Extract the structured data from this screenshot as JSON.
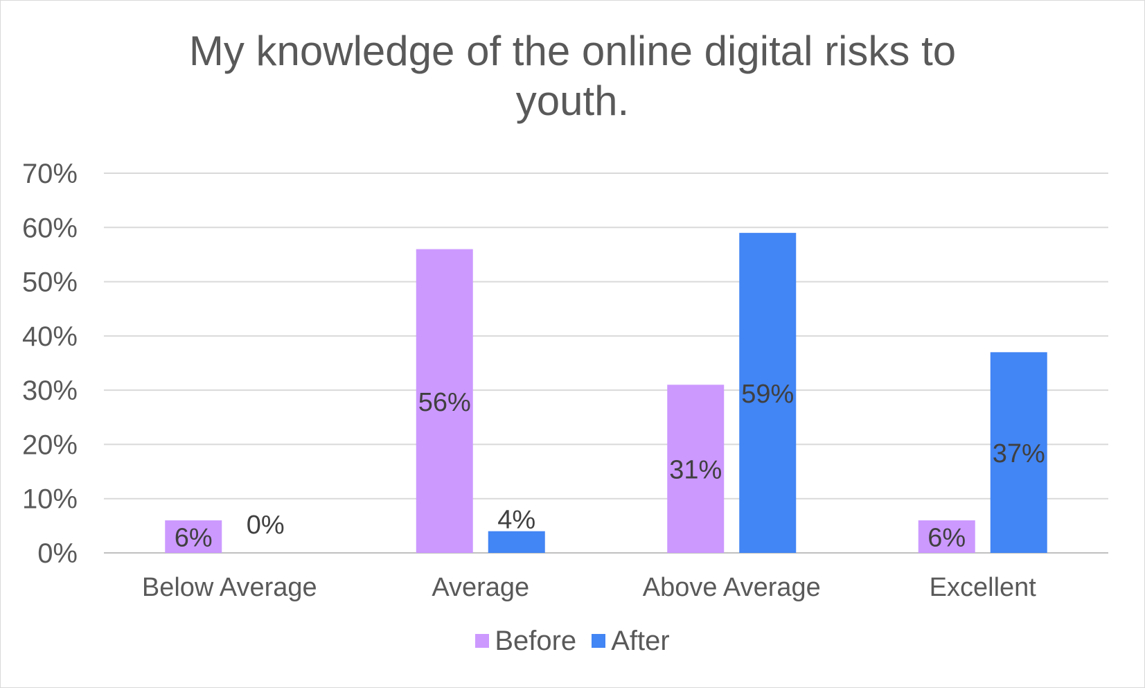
{
  "chart_data": {
    "type": "bar",
    "title_lines": [
      "My knowledge of the online digital risks to",
      "youth."
    ],
    "categories": [
      "Below Average",
      "Average",
      "Above Average",
      "Excellent"
    ],
    "series": [
      {
        "name": "Before",
        "values": [
          0.06,
          0.56,
          0.31,
          0.06
        ],
        "labels": [
          "6%",
          "56%",
          "31%",
          "6%"
        ],
        "color": "#cc99ff"
      },
      {
        "name": "After",
        "values": [
          0.0,
          0.04,
          0.59,
          0.37
        ],
        "labels": [
          "0%",
          "4%",
          "59%",
          "37%"
        ],
        "color": "#4285f4"
      }
    ],
    "ylim": [
      0,
      0.7
    ],
    "yticks": [
      0,
      0.1,
      0.2,
      0.3,
      0.4,
      0.5,
      0.6,
      0.7
    ],
    "ytick_labels": [
      "0%",
      "10%",
      "20%",
      "30%",
      "40%",
      "50%",
      "60%",
      "70%"
    ],
    "grid": true,
    "legend_position": "bottom",
    "colors": {
      "text": "#595959",
      "grid": "#d9d9d9",
      "axis": "#bfbfbf",
      "label": "#404040"
    }
  }
}
